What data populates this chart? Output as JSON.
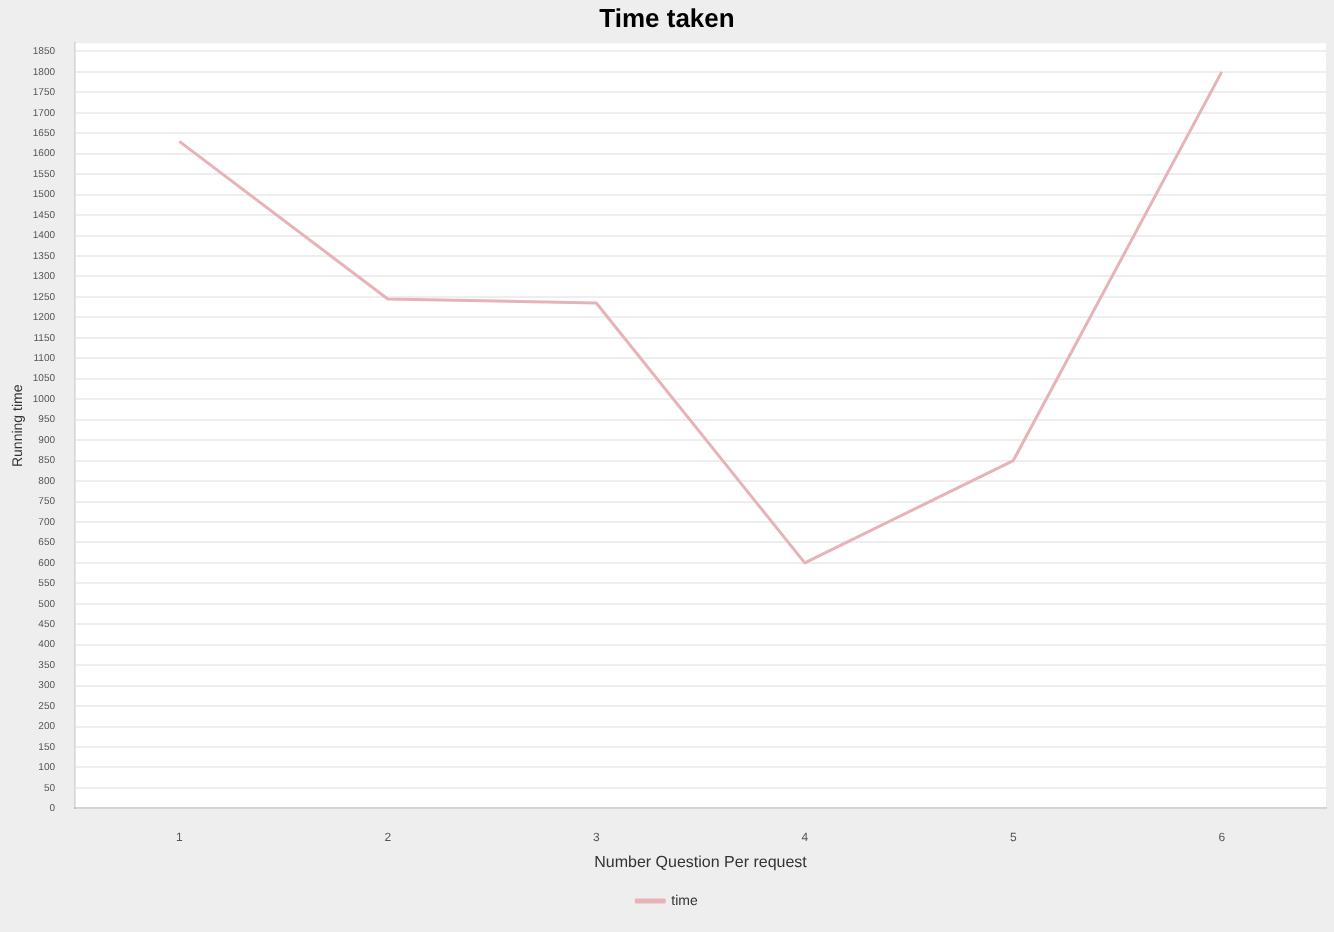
{
  "chart_data": {
    "type": "line",
    "title": "Time taken",
    "xlabel": "Number Question Per request",
    "ylabel": "Running time",
    "categories": [
      "1",
      "2",
      "3",
      "4",
      "5",
      "6"
    ],
    "series": [
      {
        "name": "time",
        "color": "#e6b3b8",
        "values": [
          1630,
          1245,
          1235,
          600,
          850,
          1800
        ]
      }
    ],
    "ylim": [
      0,
      1870
    ],
    "yticks": [
      0,
      50,
      100,
      150,
      200,
      250,
      300,
      350,
      400,
      450,
      500,
      550,
      600,
      650,
      700,
      750,
      800,
      850,
      900,
      950,
      1000,
      1050,
      1100,
      1150,
      1200,
      1250,
      1300,
      1350,
      1400,
      1450,
      1500,
      1550,
      1600,
      1650,
      1700,
      1750,
      1800,
      1850
    ],
    "grid": "y",
    "legend": "bottom",
    "marker": "none",
    "line_style": "solid"
  }
}
